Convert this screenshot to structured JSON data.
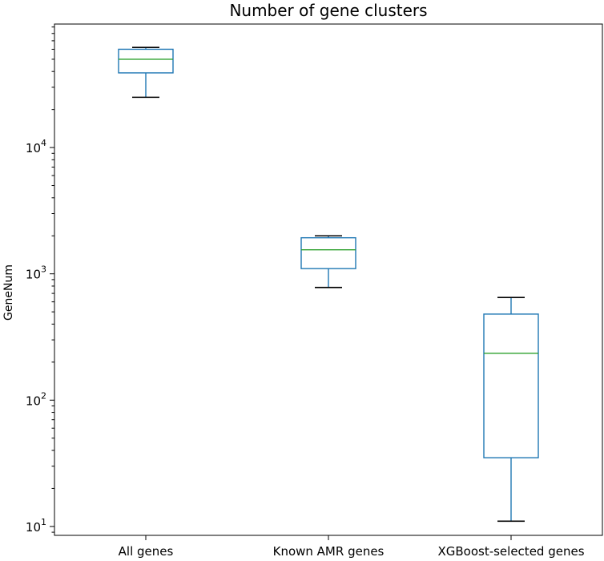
{
  "chart_data": {
    "type": "box",
    "title": "Number of gene clusters",
    "xlabel": "",
    "ylabel": "GeneNum",
    "yscale": "log",
    "ylim": [
      8.5,
      95000
    ],
    "yticks": [
      {
        "value": 10,
        "base": "10",
        "exp": "1"
      },
      {
        "value": 100,
        "base": "10",
        "exp": "2"
      },
      {
        "value": 1000,
        "base": "10",
        "exp": "3"
      },
      {
        "value": 10000,
        "base": "10",
        "exp": "4"
      }
    ],
    "grid": false,
    "colors": {
      "box": "#1f77b4",
      "median": "#2ca02c",
      "whisker": "#1f77b4",
      "cap": "#000000",
      "axis": "#000000"
    },
    "categories": [
      "All genes",
      "Known AMR genes",
      "XGBoost-selected genes"
    ],
    "boxes": [
      {
        "label": "All genes",
        "whisker_low": 25000,
        "q1": 39000,
        "median": 50000,
        "q3": 60000,
        "whisker_high": 62000
      },
      {
        "label": "Known AMR genes",
        "whisker_low": 780,
        "q1": 1100,
        "median": 1550,
        "q3": 1930,
        "whisker_high": 2000
      },
      {
        "label": "XGBoost-selected genes",
        "whisker_low": 11,
        "q1": 35,
        "median": 235,
        "q3": 480,
        "whisker_high": 650
      }
    ]
  }
}
